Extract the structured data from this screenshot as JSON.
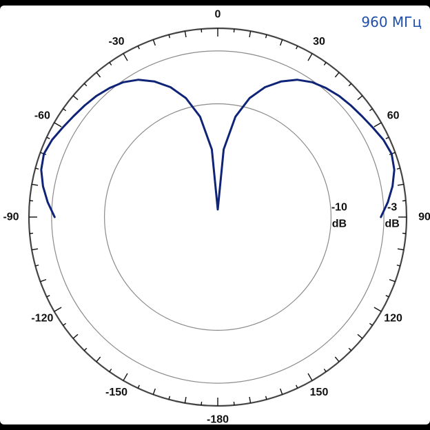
{
  "frequency_label": "960 МГц",
  "colors": {
    "trace": "#0f2377",
    "outer_ring": "#444444",
    "inner_rings": "#8a8a8a",
    "freq_text": "#1f4fa8"
  },
  "chart_data": {
    "type": "polar-line",
    "title": "",
    "angle_unit": "deg",
    "angle_zero": "top",
    "angle_direction": "clockwise",
    "angle_tick_labels": [
      "0",
      "30",
      "60",
      "90",
      "120",
      "150",
      "-180",
      "-150",
      "-120",
      "-90",
      "-60",
      "-30"
    ],
    "angle_tick_values": [
      0,
      30,
      60,
      90,
      120,
      150,
      180,
      -150,
      -120,
      -90,
      -60,
      -30
    ],
    "ring_labels": [
      {
        "value": -3,
        "text": "-3",
        "unit": "dB"
      },
      {
        "value": -10,
        "text": "-10",
        "unit": "dB"
      }
    ],
    "radial_range_db": [
      -25,
      0
    ],
    "ring_values_db": [
      -10,
      -3,
      0
    ],
    "grid": true,
    "series": [
      {
        "points": [
          {
            "angle": -90,
            "db": -3.4
          },
          {
            "angle": -85,
            "db": -2.4
          },
          {
            "angle": -80,
            "db": -1.5
          },
          {
            "angle": -75,
            "db": -0.8
          },
          {
            "angle": -70,
            "db": -0.5
          },
          {
            "angle": -65,
            "db": -0.8
          },
          {
            "angle": -60,
            "db": -1.3
          },
          {
            "angle": -55,
            "db": -1.7
          },
          {
            "angle": -50,
            "db": -2.0
          },
          {
            "angle": -45,
            "db": -2.3
          },
          {
            "angle": -40,
            "db": -2.7
          },
          {
            "angle": -35,
            "db": -3.2
          },
          {
            "angle": -30,
            "db": -4.0
          },
          {
            "angle": -25,
            "db": -5.2
          },
          {
            "angle": -20,
            "db": -6.7
          },
          {
            "angle": -15,
            "db": -8.7
          },
          {
            "angle": -10,
            "db": -11.5
          },
          {
            "angle": -5,
            "db": -16.0
          },
          {
            "angle": 0,
            "db": -24.0
          },
          {
            "angle": 5,
            "db": -16.0
          },
          {
            "angle": 10,
            "db": -11.5
          },
          {
            "angle": 15,
            "db": -8.7
          },
          {
            "angle": 20,
            "db": -6.7
          },
          {
            "angle": 25,
            "db": -5.2
          },
          {
            "angle": 30,
            "db": -4.0
          },
          {
            "angle": 35,
            "db": -3.2
          },
          {
            "angle": 40,
            "db": -2.7
          },
          {
            "angle": 45,
            "db": -2.3
          },
          {
            "angle": 50,
            "db": -2.0
          },
          {
            "angle": 55,
            "db": -1.7
          },
          {
            "angle": 60,
            "db": -1.3
          },
          {
            "angle": 65,
            "db": -0.8
          },
          {
            "angle": 70,
            "db": -0.5
          },
          {
            "angle": 75,
            "db": -0.8
          },
          {
            "angle": 80,
            "db": -1.5
          },
          {
            "angle": 85,
            "db": -2.4
          },
          {
            "angle": 90,
            "db": -3.4
          }
        ]
      }
    ]
  }
}
